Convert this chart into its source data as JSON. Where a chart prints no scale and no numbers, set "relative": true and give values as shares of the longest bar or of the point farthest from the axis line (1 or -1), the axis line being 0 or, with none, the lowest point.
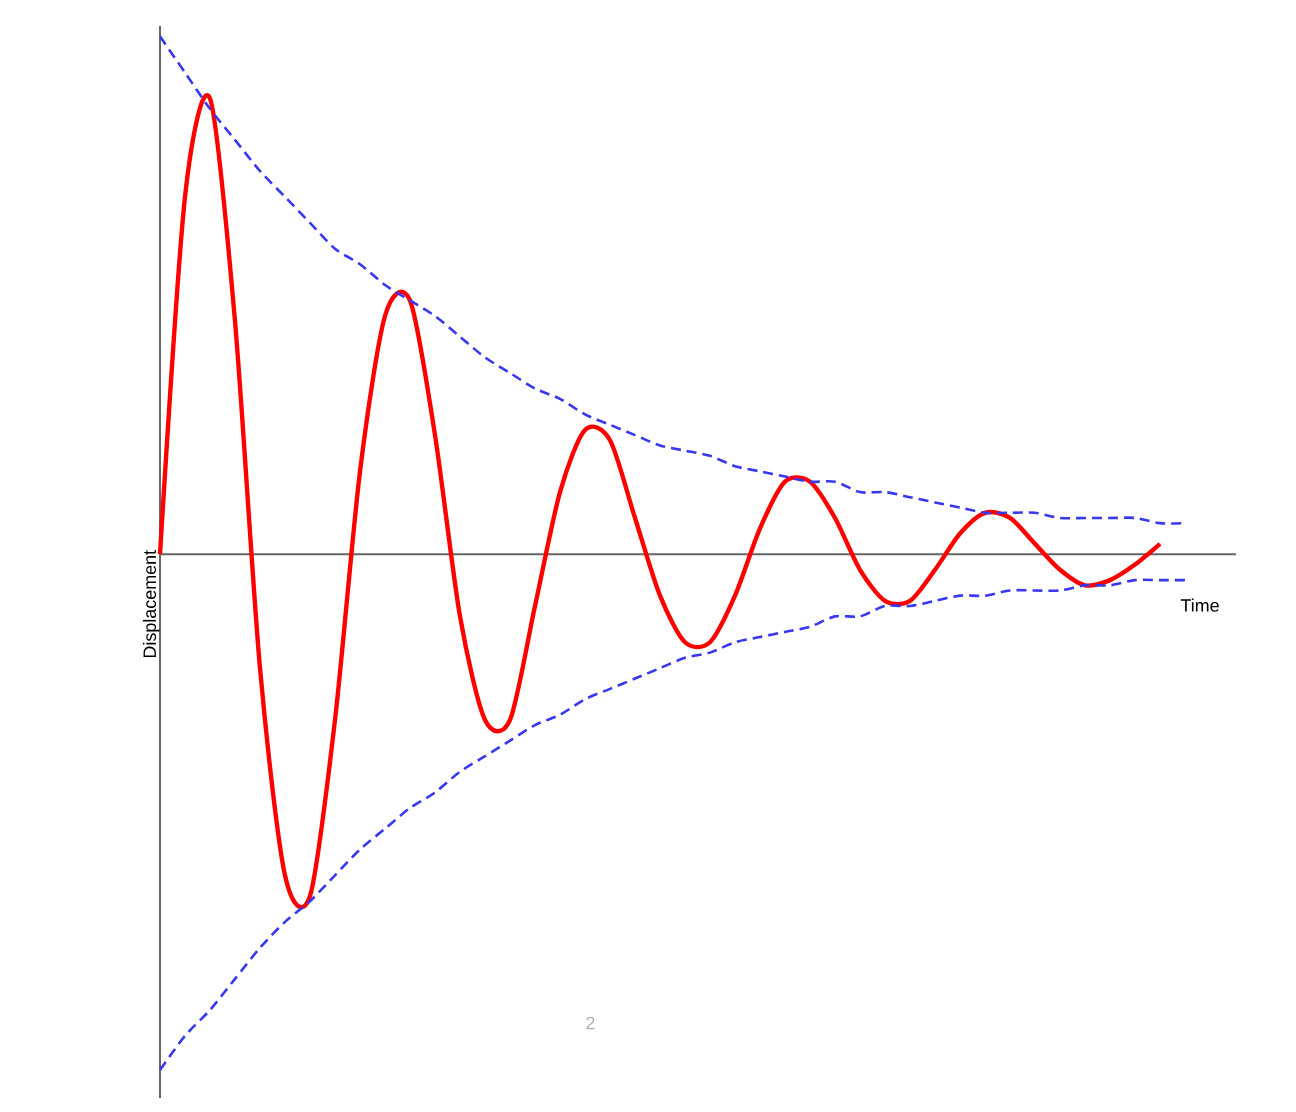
{
  "chart_data": {
    "type": "line",
    "xlabel": "Time",
    "ylabel": "Displacement",
    "relative": true,
    "tick_labels": false,
    "categories": [
      null,
      null,
      null,
      null,
      null,
      null,
      null,
      null,
      null,
      null,
      null,
      null,
      null,
      null,
      null,
      null,
      null,
      null,
      null,
      null,
      null,
      null,
      null,
      null,
      null,
      null,
      null,
      null,
      null,
      null,
      null,
      null,
      null,
      null,
      null,
      null,
      null,
      null,
      null,
      null,
      null,
      null
    ],
    "series": [
      {
        "color": "#ff0000",
        "line_style": "solid",
        "values": [
          0,
          0.69,
          0.88,
          0.45,
          -0.22,
          -0.62,
          -0.66,
          -0.32,
          0.16,
          0.46,
          0.49,
          0.23,
          -0.12,
          -0.32,
          -0.32,
          -0.1,
          0.12,
          0.24,
          0.22,
          0.07,
          -0.08,
          -0.17,
          -0.17,
          -0.08,
          0.05,
          0.14,
          0.14,
          0.07,
          -0.03,
          -0.09,
          -0.09,
          -0.03,
          0.04,
          0.08,
          0.07,
          0.02,
          -0.03,
          -0.06,
          -0.05,
          -0.02,
          0.02,
          null
        ]
      },
      {
        "color": "#3838f0",
        "line_style": "dashed",
        "values": [
          1,
          0.93,
          0.86,
          0.8,
          0.74,
          0.69,
          0.64,
          0.59,
          0.56,
          0.52,
          0.49,
          0.46,
          0.42,
          0.38,
          0.35,
          0.32,
          0.3,
          0.27,
          0.25,
          0.23,
          0.21,
          0.2,
          0.19,
          0.17,
          0.16,
          0.15,
          0.14,
          0.14,
          0.12,
          0.12,
          0.11,
          0.1,
          0.09,
          0.08,
          0.08,
          0.08,
          0.07,
          0.07,
          0.07,
          0.07,
          0.06,
          0.06
        ]
      },
      {
        "color": "#3838f0",
        "line_style": "dashed",
        "values": [
          -0.996,
          -0.93,
          -0.88,
          -0.82,
          -0.76,
          -0.71,
          -0.67,
          -0.62,
          -0.57,
          -0.53,
          -0.49,
          -0.46,
          -0.42,
          -0.39,
          -0.36,
          -0.33,
          -0.31,
          -0.28,
          -0.26,
          -0.24,
          -0.22,
          -0.2,
          -0.19,
          -0.17,
          -0.16,
          -0.15,
          -0.14,
          -0.12,
          -0.12,
          -0.1,
          -0.1,
          -0.09,
          -0.08,
          -0.08,
          -0.07,
          -0.07,
          -0.07,
          -0.06,
          -0.06,
          -0.05,
          -0.05,
          -0.05
        ]
      }
    ],
    "annotations": [
      "2"
    ]
  }
}
